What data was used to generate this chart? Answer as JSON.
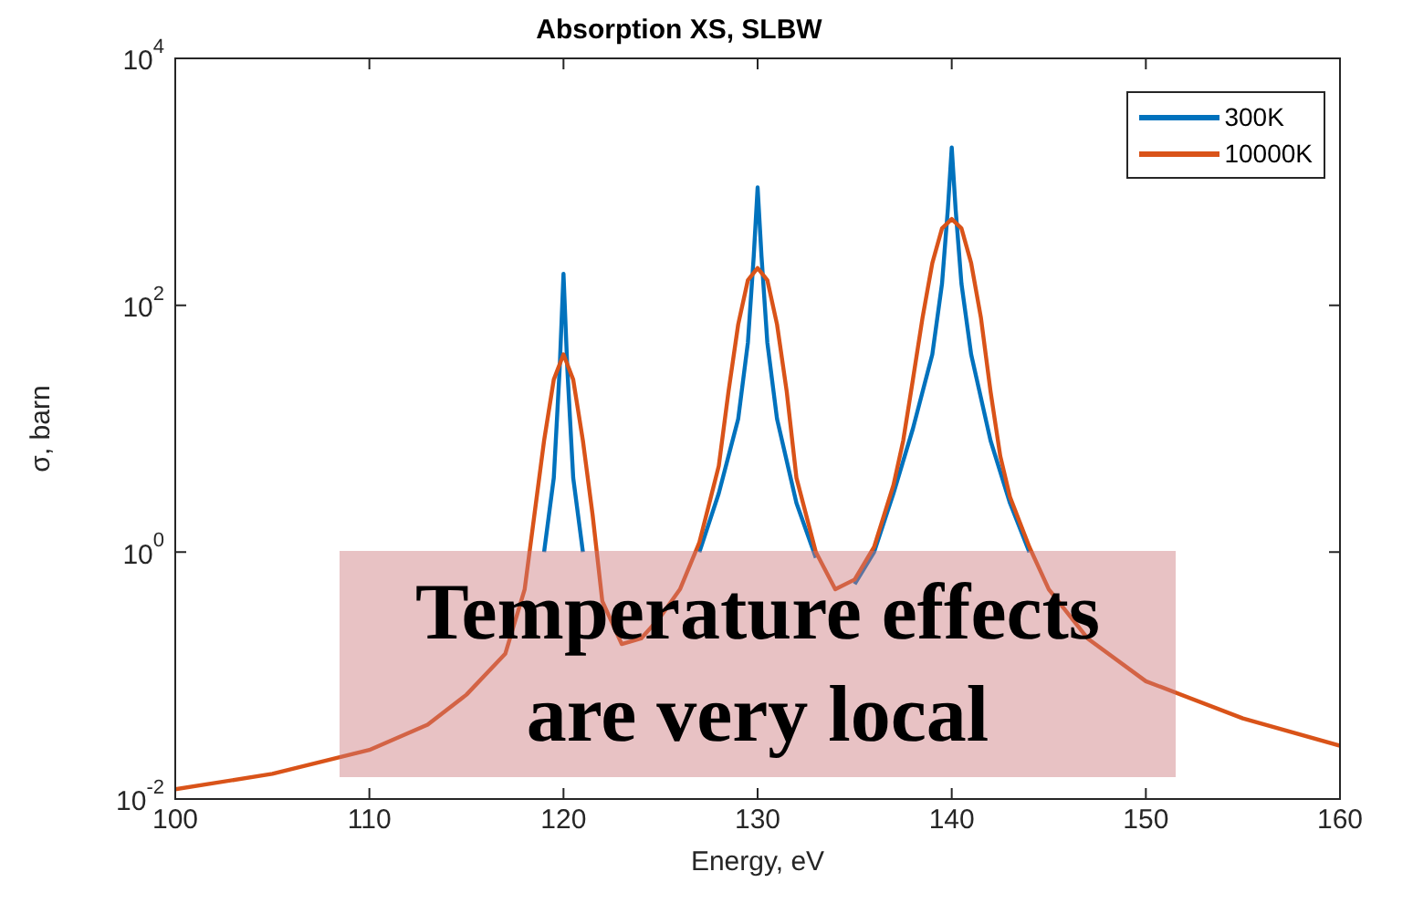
{
  "chart_data": {
    "type": "line",
    "title": "Absorption XS, SLBW",
    "xlabel": "Energy, eV",
    "ylabel": "σ, barn",
    "log": "y",
    "grid": false,
    "legend": "top right",
    "xlim": [
      100,
      160
    ],
    "xticks": [
      100,
      110,
      120,
      130,
      140,
      150,
      160
    ],
    "ylim": [
      0.01,
      10000
    ],
    "yticks": [
      {
        "value": 0.01,
        "label": "10$^{-2}$"
      },
      {
        "value": 1,
        "label": "10$^{0}$"
      },
      {
        "value": 100,
        "label": "10$^{2}$"
      },
      {
        "value": 10000,
        "label": "10$^{4}$"
      }
    ],
    "series": [
      {
        "name": "300K",
        "color": "#0072bd",
        "x": [
          119,
          119.5,
          119.8,
          120,
          120.2,
          120.5,
          121,
          124,
          127,
          128,
          129,
          129.5,
          129.8,
          130,
          130.2,
          130.5,
          131,
          132,
          133,
          134,
          135,
          136,
          137,
          138,
          139,
          139.5,
          139.8,
          140,
          140.2,
          140.5,
          141,
          142,
          143,
          144
        ],
        "values": [
          1,
          4,
          30,
          180,
          30,
          4,
          1,
          null,
          1,
          3,
          12,
          50,
          250,
          900,
          250,
          50,
          12,
          2.5,
          0.9,
          null,
          0.55,
          1,
          3,
          10,
          40,
          150,
          600,
          1900,
          600,
          150,
          40,
          8,
          2.5,
          1
        ]
      },
      {
        "name": "10000K",
        "color": "#d95319",
        "x": [
          100,
          105,
          110,
          113,
          115,
          117,
          118,
          118.5,
          119,
          119.5,
          120,
          120.5,
          121,
          121.5,
          122,
          123,
          124,
          125,
          126,
          127,
          128,
          128.5,
          129,
          129.5,
          130,
          130.5,
          131,
          131.5,
          132,
          133,
          134,
          135,
          136,
          137,
          137.5,
          138,
          138.5,
          139,
          139.5,
          140,
          140.5,
          141,
          141.5,
          142,
          142.5,
          143,
          144,
          145,
          147,
          150,
          155,
          160
        ],
        "values": [
          0.012,
          0.016,
          0.025,
          0.04,
          0.07,
          0.15,
          0.5,
          2,
          8,
          25,
          40,
          25,
          8,
          2,
          0.4,
          0.18,
          0.2,
          0.3,
          0.5,
          1.2,
          5,
          20,
          70,
          160,
          200,
          160,
          70,
          20,
          4,
          1,
          0.5,
          0.6,
          1.1,
          3.5,
          8,
          25,
          80,
          220,
          420,
          500,
          420,
          220,
          80,
          20,
          6,
          2.8,
          1.1,
          0.5,
          0.2,
          0.09,
          0.045,
          0.027
        ]
      }
    ],
    "annotations": [
      "Temperature effects are very local"
    ]
  }
}
